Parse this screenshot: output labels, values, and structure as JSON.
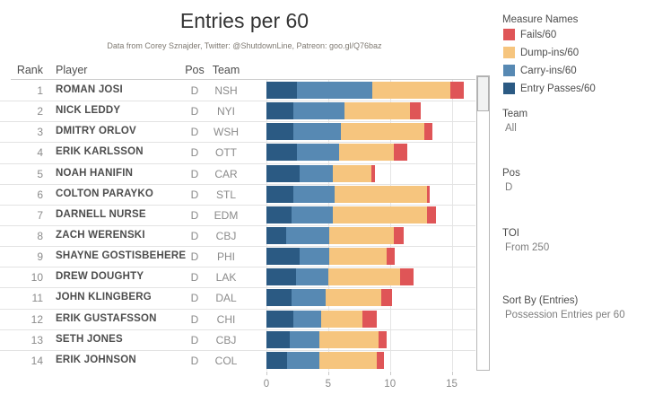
{
  "title": "Entries per 60",
  "subtitle": "Data from Corey Sznajder, Twitter: @ShutdownLine, Patreon: goo.gl/Q76baz",
  "table": {
    "headers": {
      "rank": "Rank",
      "player": "Player",
      "pos": "Pos",
      "team": "Team"
    }
  },
  "chart_data": {
    "type": "bar",
    "orientation": "horizontal",
    "stacked": true,
    "xlim": [
      0,
      16.92
    ],
    "x_ticks": [
      0,
      5,
      10,
      15
    ],
    "grid": true,
    "series": [
      {
        "name": "Entry Passes/60",
        "key": "entry_passes",
        "color": "#2b5a83"
      },
      {
        "name": "Carry-ins/60",
        "key": "carry_ins",
        "color": "#5789b3"
      },
      {
        "name": "Dump-ins/60",
        "key": "dump_ins",
        "color": "#f6c57e"
      },
      {
        "name": "Fails/60",
        "key": "fails",
        "color": "#df5557"
      }
    ],
    "rows": [
      {
        "rank": 1,
        "player": "ROMAN JOSI",
        "pos": "D",
        "team": "NSH",
        "entry_passes": 2.5,
        "carry_ins": 6.1,
        "dump_ins": 6.3,
        "fails": 1.1
      },
      {
        "rank": 2,
        "player": "NICK LEDDY",
        "pos": "D",
        "team": "NYI",
        "entry_passes": 2.2,
        "carry_ins": 4.1,
        "dump_ins": 5.3,
        "fails": 0.9
      },
      {
        "rank": 3,
        "player": "DMITRY ORLOV",
        "pos": "D",
        "team": "WSH",
        "entry_passes": 2.2,
        "carry_ins": 3.8,
        "dump_ins": 6.8,
        "fails": 0.6
      },
      {
        "rank": 4,
        "player": "ERIK KARLSSON",
        "pos": "D",
        "team": "OTT",
        "entry_passes": 2.5,
        "carry_ins": 3.4,
        "dump_ins": 4.4,
        "fails": 1.1
      },
      {
        "rank": 5,
        "player": "NOAH HANIFIN",
        "pos": "D",
        "team": "CAR",
        "entry_passes": 2.7,
        "carry_ins": 2.7,
        "dump_ins": 3.1,
        "fails": 0.3
      },
      {
        "rank": 6,
        "player": "COLTON PARAYKO",
        "pos": "D",
        "team": "STL",
        "entry_passes": 2.2,
        "carry_ins": 3.3,
        "dump_ins": 7.5,
        "fails": 0.2
      },
      {
        "rank": 7,
        "player": "DARNELL NURSE",
        "pos": "D",
        "team": "EDM",
        "entry_passes": 2.0,
        "carry_ins": 3.4,
        "dump_ins": 7.6,
        "fails": 0.7
      },
      {
        "rank": 8,
        "player": "ZACH WERENSKI",
        "pos": "D",
        "team": "CBJ",
        "entry_passes": 1.6,
        "carry_ins": 3.5,
        "dump_ins": 5.2,
        "fails": 0.8
      },
      {
        "rank": 9,
        "player": "SHAYNE GOSTISBEHERE",
        "pos": "D",
        "team": "PHI",
        "entry_passes": 2.7,
        "carry_ins": 2.4,
        "dump_ins": 4.6,
        "fails": 0.7
      },
      {
        "rank": 10,
        "player": "DREW DOUGHTY",
        "pos": "D",
        "team": "LAK",
        "entry_passes": 2.4,
        "carry_ins": 2.6,
        "dump_ins": 5.8,
        "fails": 1.1
      },
      {
        "rank": 11,
        "player": "JOHN KLINGBERG",
        "pos": "D",
        "team": "DAL",
        "entry_passes": 2.0,
        "carry_ins": 2.8,
        "dump_ins": 4.5,
        "fails": 0.9
      },
      {
        "rank": 12,
        "player": "ERIK GUSTAFSSON",
        "pos": "D",
        "team": "CHI",
        "entry_passes": 2.2,
        "carry_ins": 2.2,
        "dump_ins": 3.4,
        "fails": 1.1
      },
      {
        "rank": 13,
        "player": "SETH JONES",
        "pos": "D",
        "team": "CBJ",
        "entry_passes": 1.9,
        "carry_ins": 2.4,
        "dump_ins": 4.8,
        "fails": 0.6
      },
      {
        "rank": 14,
        "player": "ERIK JOHNSON",
        "pos": "D",
        "team": "COL",
        "entry_passes": 1.7,
        "carry_ins": 2.6,
        "dump_ins": 4.6,
        "fails": 0.6
      }
    ]
  },
  "legend": {
    "title": "Measure Names",
    "items": [
      {
        "label": "Fails/60",
        "color": "#df5557"
      },
      {
        "label": "Dump-ins/60",
        "color": "#f6c57e"
      },
      {
        "label": "Carry-ins/60",
        "color": "#5789b3"
      },
      {
        "label": "Entry Passes/60",
        "color": "#2b5a83"
      }
    ]
  },
  "filters": [
    {
      "label": "Team",
      "value": "All"
    },
    {
      "label": "Pos",
      "value": "D"
    },
    {
      "label": "TOI",
      "value": "From 250"
    },
    {
      "label": "Sort By (Entries)",
      "value": "Possession Entries per 60"
    }
  ]
}
